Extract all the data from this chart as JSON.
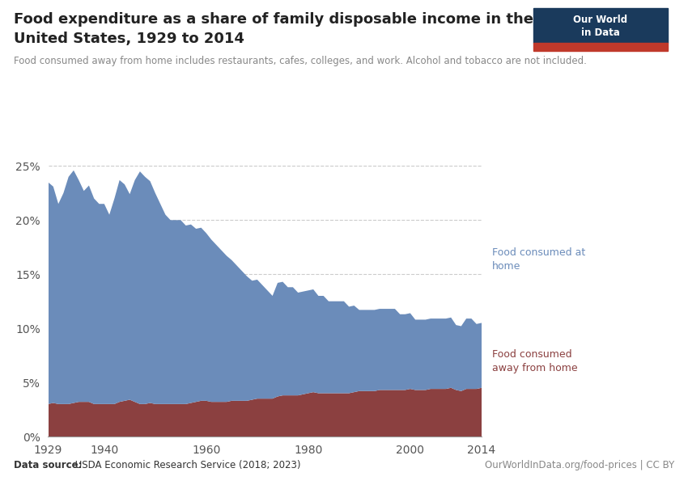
{
  "title_line1": "Food expenditure as a share of family disposable income in the",
  "title_line2": "United States, 1929 to 2014",
  "subtitle": "Food consumed away from home includes restaurants, cafes, colleges, and work. Alcohol and tobacco are not included.",
  "datasource_bold": "Data source:",
  "datasource_rest": " USDA Economic Research Service (2018; 2023)",
  "credit": "OurWorldInData.org/food-prices | CC BY",
  "color_at_home": "#6b8cba",
  "color_away": "#8b4040",
  "background": "#ffffff",
  "years": [
    1929,
    1930,
    1931,
    1932,
    1933,
    1934,
    1935,
    1936,
    1937,
    1938,
    1939,
    1940,
    1941,
    1942,
    1943,
    1944,
    1945,
    1946,
    1947,
    1948,
    1949,
    1950,
    1951,
    1952,
    1953,
    1954,
    1955,
    1956,
    1957,
    1958,
    1959,
    1960,
    1961,
    1962,
    1963,
    1964,
    1965,
    1966,
    1967,
    1968,
    1969,
    1970,
    1971,
    1972,
    1973,
    1974,
    1975,
    1976,
    1977,
    1978,
    1979,
    1980,
    1981,
    1982,
    1983,
    1984,
    1985,
    1986,
    1987,
    1988,
    1989,
    1990,
    1991,
    1992,
    1993,
    1994,
    1995,
    1996,
    1997,
    1998,
    1999,
    2000,
    2001,
    2002,
    2003,
    2004,
    2005,
    2006,
    2007,
    2008,
    2009,
    2010,
    2011,
    2012,
    2013,
    2014
  ],
  "food_at_home": [
    20.5,
    20.0,
    18.5,
    19.5,
    21.0,
    21.5,
    20.5,
    19.5,
    20.0,
    19.0,
    18.5,
    18.5,
    17.5,
    19.0,
    20.5,
    20.0,
    19.0,
    20.5,
    21.5,
    21.0,
    20.5,
    19.5,
    18.5,
    17.5,
    17.0,
    17.0,
    17.0,
    16.5,
    16.5,
    16.0,
    16.0,
    15.5,
    15.0,
    14.5,
    14.0,
    13.5,
    13.0,
    12.5,
    12.0,
    11.5,
    11.0,
    11.0,
    10.5,
    10.0,
    9.5,
    10.5,
    10.5,
    10.0,
    10.0,
    9.5,
    9.5,
    9.5,
    9.5,
    9.0,
    9.0,
    8.5,
    8.5,
    8.5,
    8.5,
    8.0,
    8.0,
    7.5,
    7.5,
    7.5,
    7.5,
    7.5,
    7.5,
    7.5,
    7.5,
    7.0,
    7.0,
    7.0,
    6.5,
    6.5,
    6.5,
    6.5,
    6.5,
    6.5,
    6.5,
    6.5,
    6.0,
    6.0,
    6.5,
    6.5,
    6.0,
    6.0
  ],
  "food_away_from_home": [
    3.0,
    3.1,
    3.0,
    3.0,
    3.0,
    3.1,
    3.2,
    3.2,
    3.2,
    3.0,
    3.0,
    3.0,
    3.0,
    3.0,
    3.2,
    3.3,
    3.4,
    3.2,
    3.0,
    3.0,
    3.1,
    3.0,
    3.0,
    3.0,
    3.0,
    3.0,
    3.0,
    3.0,
    3.1,
    3.2,
    3.3,
    3.3,
    3.2,
    3.2,
    3.2,
    3.2,
    3.3,
    3.3,
    3.3,
    3.3,
    3.4,
    3.5,
    3.5,
    3.5,
    3.5,
    3.7,
    3.8,
    3.8,
    3.8,
    3.8,
    3.9,
    4.0,
    4.1,
    4.0,
    4.0,
    4.0,
    4.0,
    4.0,
    4.0,
    4.0,
    4.1,
    4.2,
    4.2,
    4.2,
    4.2,
    4.3,
    4.3,
    4.3,
    4.3,
    4.3,
    4.3,
    4.4,
    4.3,
    4.3,
    4.3,
    4.4,
    4.4,
    4.4,
    4.4,
    4.5,
    4.3,
    4.2,
    4.4,
    4.4,
    4.4,
    4.5
  ],
  "ylim": [
    0,
    0.26
  ],
  "yticks": [
    0.0,
    0.05,
    0.1,
    0.15,
    0.2,
    0.25
  ],
  "ytick_labels": [
    "0%",
    "5%",
    "10%",
    "15%",
    "20%",
    "25%"
  ],
  "xticks": [
    1929,
    1940,
    1960,
    1980,
    2000,
    2014
  ],
  "logo_bg": "#1a3a5c",
  "logo_red": "#c0392b",
  "logo_text1": "Our World",
  "logo_text2": "in Data"
}
